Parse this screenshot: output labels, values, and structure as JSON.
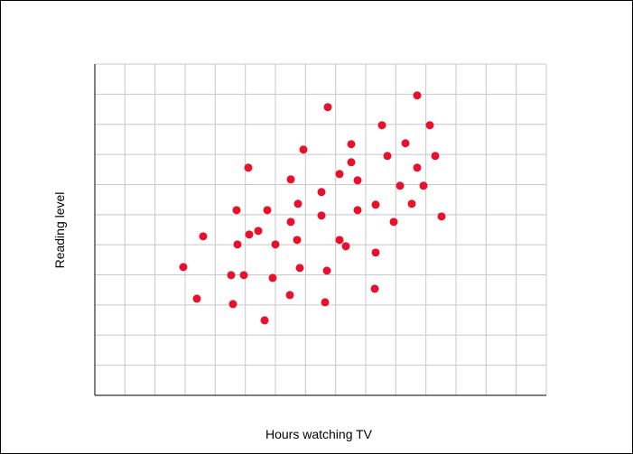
{
  "chart_data": {
    "type": "scatter",
    "x_label": "Hours watching TV",
    "y_label": "Reading level",
    "color": "#e8102a",
    "grid": true,
    "xlim": [
      0,
      15
    ],
    "ylim": [
      0,
      11
    ],
    "xticks": [
      0,
      1,
      2,
      3,
      4,
      5,
      6,
      7,
      8,
      9,
      10,
      11,
      12,
      13,
      14,
      15
    ],
    "yticks": [
      0,
      1,
      2,
      3,
      4,
      5,
      6,
      7,
      8,
      9,
      10,
      11
    ],
    "x": [
      2.94,
      3.39,
      3.6,
      4.53,
      4.59,
      4.71,
      4.74,
      4.95,
      5.1,
      5.13,
      5.43,
      5.64,
      5.73,
      5.91,
      6.0,
      6.48,
      6.51,
      6.51,
      6.72,
      6.75,
      6.81,
      6.93,
      7.53,
      7.53,
      7.65,
      7.71,
      7.74,
      8.13,
      8.13,
      8.34,
      8.52,
      8.52,
      8.73,
      8.73,
      9.3,
      9.33,
      9.33,
      9.54,
      9.72,
      9.93,
      10.14,
      10.32,
      10.53,
      10.71,
      10.71,
      10.92,
      11.13,
      11.31,
      11.52
    ],
    "values": [
      4.26,
      3.21,
      5.28,
      3.99,
      3.03,
      6.15,
      5.01,
      3.99,
      7.56,
      5.34,
      5.46,
      2.49,
      6.15,
      3.9,
      5.01,
      3.33,
      5.76,
      7.17,
      5.16,
      6.36,
      4.23,
      8.16,
      6.75,
      5.97,
      3.09,
      4.14,
      9.57,
      5.16,
      7.35,
      4.95,
      8.34,
      7.74,
      6.15,
      7.14,
      3.54,
      4.74,
      6.33,
      8.97,
      7.95,
      5.76,
      6.96,
      8.37,
      6.36,
      9.96,
      7.56,
      6.96,
      8.97,
      7.95,
      5.94
    ]
  }
}
